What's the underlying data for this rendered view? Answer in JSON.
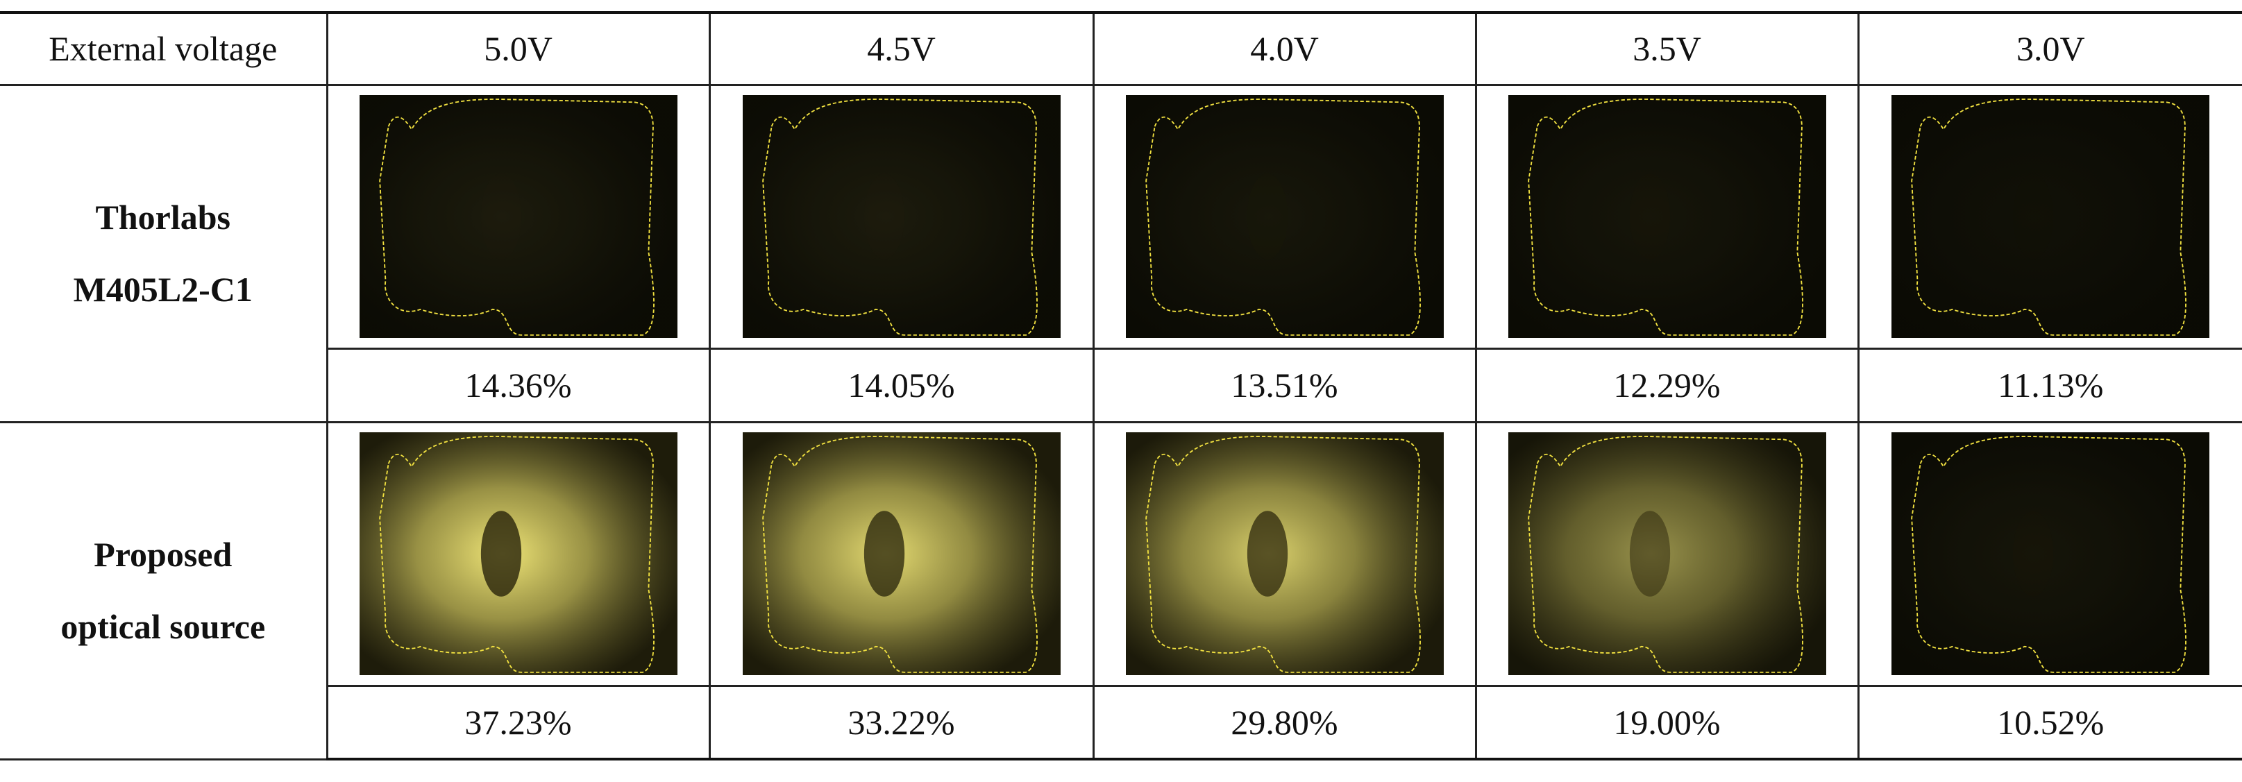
{
  "table": {
    "header": [
      "External voltage",
      "5.0V",
      "4.5V",
      "4.0V",
      "3.5V",
      "3.0V"
    ],
    "rows": [
      {
        "label": [
          "Thorlabs",
          "M405L2-C1"
        ],
        "values": [
          "14.36%",
          "14.05%",
          "13.51%",
          "12.29%",
          "11.13%"
        ]
      },
      {
        "label": [
          "Proposed",
          "optical source"
        ],
        "values": [
          "37.23%",
          "33.22%",
          "29.80%",
          "19.00%",
          "10.52%"
        ]
      }
    ]
  }
}
